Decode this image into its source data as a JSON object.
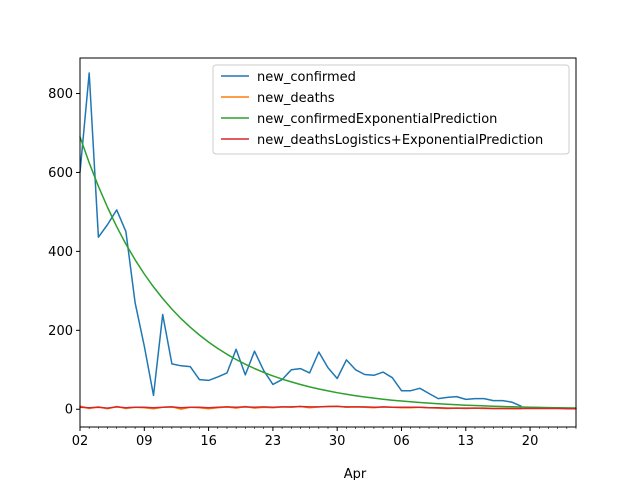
{
  "chart_data": {
    "type": "line",
    "xlabel": "Apr",
    "ylabel": "",
    "x_start": "2020-03-02",
    "x_end": "2020-04-25",
    "xlim": [
      "2020-03-02",
      "2020-04-25"
    ],
    "ylim": [
      -45,
      890
    ],
    "x_ticks": [
      {
        "label": "02",
        "date": "2020-03-02"
      },
      {
        "label": "09",
        "date": "2020-03-09"
      },
      {
        "label": "16",
        "date": "2020-03-16"
      },
      {
        "label": "23",
        "date": "2020-03-23"
      },
      {
        "label": "30",
        "date": "2020-03-30"
      },
      {
        "label": "06",
        "date": "2020-04-06"
      },
      {
        "label": "13",
        "date": "2020-04-13"
      },
      {
        "label": "20",
        "date": "2020-04-20"
      }
    ],
    "y_ticks": [
      0,
      200,
      400,
      600,
      800
    ],
    "legend_position": "top-right",
    "grid": false,
    "series": [
      {
        "name": "new_confirmed",
        "color": "#1f77b4",
        "x_start": "2020-03-02",
        "values": [
          600,
          852,
          436,
          468,
          505,
          450,
          270,
          160,
          35,
          240,
          115,
          110,
          108,
          75,
          73,
          82,
          92,
          152,
          87,
          147,
          98,
          63,
          75,
          100,
          103,
          92,
          145,
          105,
          78,
          125,
          100,
          88,
          86,
          94,
          80,
          47,
          47,
          53,
          40,
          27,
          30,
          32,
          25,
          27,
          27,
          22,
          22,
          18,
          8
        ]
      },
      {
        "name": "new_deaths",
        "color": "#ff7f0e",
        "x_start": "2020-03-02",
        "values": [
          8,
          2,
          6,
          1,
          7,
          2,
          5,
          4,
          1,
          5,
          6,
          0,
          5,
          4,
          1,
          4,
          6,
          3,
          7,
          3,
          5,
          4,
          6,
          5,
          7,
          4,
          6,
          7,
          8,
          5,
          6,
          5,
          4,
          6,
          5,
          4,
          4,
          5,
          4,
          3,
          2,
          3,
          2,
          3,
          2,
          2,
          2,
          1,
          1
        ]
      },
      {
        "name": "new_confirmedExponentialPrediction",
        "color": "#2ca02c",
        "x_start": "2020-03-02",
        "function": {
          "kind": "exponential",
          "a": 690,
          "b": 0.1
        }
      },
      {
        "name": "new_deathsLogistics+ExponentialPrediction",
        "color": "#d62728",
        "x_start": "2020-03-02",
        "values": [
          5,
          4,
          5,
          3,
          6,
          4,
          5,
          5,
          4,
          5,
          6,
          4,
          5,
          5,
          4,
          5,
          6,
          5,
          6,
          5,
          6,
          5,
          6,
          6,
          7,
          6,
          6,
          7,
          7,
          6,
          6,
          6,
          5,
          6,
          5,
          5,
          5,
          5,
          4,
          4,
          3,
          3,
          3,
          3,
          3,
          2,
          2,
          2,
          2,
          2,
          2,
          2,
          2,
          1,
          1
        ]
      }
    ]
  }
}
